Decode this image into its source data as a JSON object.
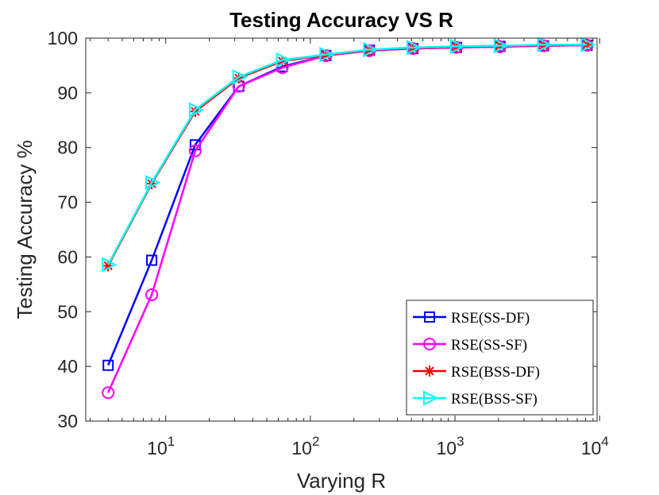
{
  "chart_data": {
    "type": "line",
    "title": "Testing Accuracy VS R",
    "xlabel": "Varying R",
    "ylabel": "Testing Accuracy %",
    "xscale": "log",
    "xlim": [
      2.8,
      9600
    ],
    "ylim": [
      30,
      100
    ],
    "yticks": [
      30,
      40,
      50,
      60,
      70,
      80,
      90,
      100
    ],
    "xticks": [
      {
        "value": 10,
        "base": "10",
        "exp": "1"
      },
      {
        "value": 100,
        "base": "10",
        "exp": "2"
      },
      {
        "value": 1000,
        "base": "10",
        "exp": "3"
      },
      {
        "value": 10000,
        "base": "10",
        "exp": "4"
      }
    ],
    "x": [
      4,
      8,
      16,
      32,
      64,
      128,
      256,
      512,
      1024,
      2048,
      4096,
      8192
    ],
    "legend_position": "bottom-right",
    "series": [
      {
        "name": "RSE(SS-DF)",
        "color": "#0000ff",
        "marker": "square",
        "values": [
          40.2,
          59.4,
          80.5,
          91.2,
          94.8,
          96.8,
          97.8,
          98.1,
          98.3,
          98.5,
          98.6,
          98.7
        ]
      },
      {
        "name": "RSE(SS-SF)",
        "color": "#ff00ff",
        "marker": "circle",
        "values": [
          35.2,
          53.1,
          79.4,
          91.2,
          94.6,
          96.8,
          97.7,
          98.1,
          98.3,
          98.4,
          98.6,
          98.7
        ]
      },
      {
        "name": "RSE(BSS-DF)",
        "color": "#ff0000",
        "marker": "asterisk",
        "values": [
          58.4,
          73.4,
          86.6,
          92.7,
          95.8,
          96.9,
          97.8,
          98.2,
          98.4,
          98.6,
          98.7,
          98.8
        ]
      },
      {
        "name": "RSE(BSS-SF)",
        "color": "#00ffff",
        "marker": "triangle-right",
        "values": [
          58.6,
          73.6,
          86.9,
          92.9,
          96.0,
          97.0,
          97.9,
          98.3,
          98.5,
          98.6,
          98.8,
          98.8
        ]
      }
    ]
  }
}
